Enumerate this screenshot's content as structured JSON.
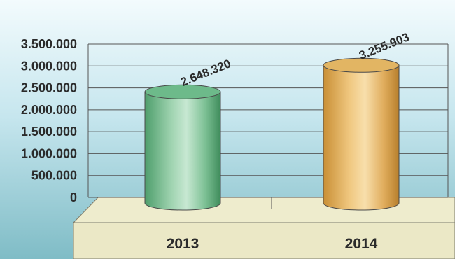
{
  "chart_data": {
    "type": "bar",
    "categories": [
      "2013",
      "2014"
    ],
    "values": [
      2648320,
      3255903
    ],
    "value_labels": [
      "2.648.320",
      "3.255.903"
    ],
    "ylim": [
      0,
      3500000
    ],
    "y_ticks": [
      {
        "value": 0,
        "label": "0"
      },
      {
        "value": 500000,
        "label": "500.000"
      },
      {
        "value": 1000000,
        "label": "1.000.000"
      },
      {
        "value": 1500000,
        "label": "1.500.000"
      },
      {
        "value": 2000000,
        "label": "2.000.000"
      },
      {
        "value": 2500000,
        "label": "2.500.000"
      },
      {
        "value": 3000000,
        "label": "3.000.000"
      },
      {
        "value": 3500000,
        "label": "3.500.000"
      }
    ],
    "grid": true,
    "bar_colors": [
      "#6dba8a",
      "#e2b563"
    ],
    "title": "",
    "xlabel": "",
    "ylabel": ""
  }
}
